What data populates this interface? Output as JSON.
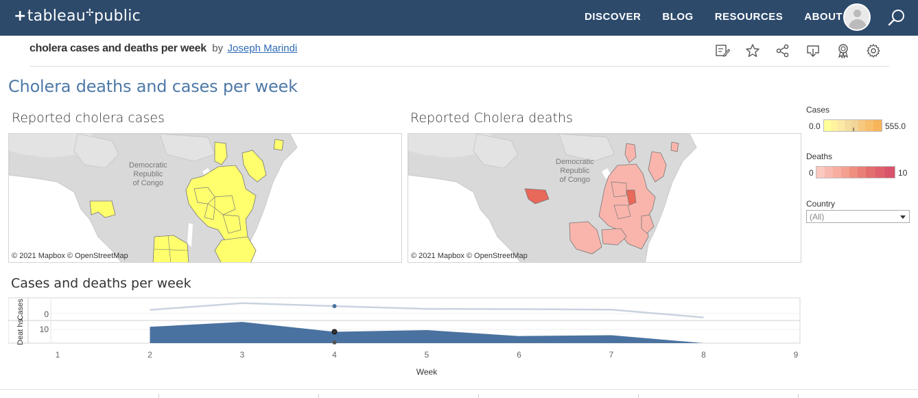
{
  "nav": {
    "logo_plus": "+",
    "logo_text": "tableau",
    "logo_text2": "public",
    "links": [
      "DISCOVER",
      "BLOG",
      "RESOURCES",
      "ABOUT"
    ]
  },
  "viz": {
    "title": "cholera cases and deaths per week",
    "by": "by",
    "author": "Joseph Marindi"
  },
  "dashboard": {
    "title": "Cholera deaths and cases per week",
    "map1_title": "Reported cholera cases",
    "map2_title": "Reported Cholera deaths",
    "attribution": "© 2021 Mapbox  © OpenStreetMap",
    "map_label": "Democratic\nRepublic\nof Congo",
    "map_label_lines": [
      "Democratic",
      "Republic",
      "of Congo"
    ],
    "chart_title": "Cases and deaths per week"
  },
  "legends": {
    "cases": {
      "title": "Cases",
      "min": "0.0",
      "max": "555.0",
      "colors": [
        "#ffff9a",
        "#f7b45a"
      ]
    },
    "deaths": {
      "title": "Deaths",
      "min": "0",
      "max": "10",
      "colors": [
        "#fbc9c0",
        "#d9536a"
      ]
    },
    "country": {
      "title": "Country",
      "value": "(All)"
    }
  },
  "colors": {
    "nav_bg": "#2d4a6b",
    "title_blue": "#4e79a7",
    "cases_fill": "#ffff6e",
    "deaths_fill": "#f9b5ac",
    "deaths_dark": "#e8685a",
    "area_fill": "#4a72a0",
    "line_color": "#c9d3df"
  },
  "chart_data": {
    "type": "area",
    "x": [
      1,
      2,
      3,
      4,
      5,
      6,
      7,
      8,
      9
    ],
    "xlabel": "Week",
    "xticks": [
      "1",
      "2",
      "3",
      "4",
      "5",
      "6",
      "7",
      "8",
      "9"
    ],
    "series": [
      {
        "name": "Cases",
        "type": "line",
        "x": [
          2,
          3,
          4,
          5,
          6,
          7,
          8
        ],
        "values": [
          0.2,
          0.65,
          0.45,
          0.27,
          0.25,
          0.22,
          -0.3
        ],
        "yticks": [
          "0"
        ],
        "ylabel": "Cases",
        "ylim": [
          -0.5,
          1.0
        ]
      },
      {
        "name": "Deaths",
        "type": "area",
        "x": [
          2,
          3,
          4,
          5,
          6,
          7,
          8
        ],
        "values": [
          11.5,
          15.0,
          8.0,
          9.2,
          5.0,
          5.6,
          0.0
        ],
        "yticks": [
          "10"
        ],
        "ylabel": "Deat hs",
        "ylim": [
          0,
          16
        ]
      }
    ],
    "highlight_x": 4
  }
}
